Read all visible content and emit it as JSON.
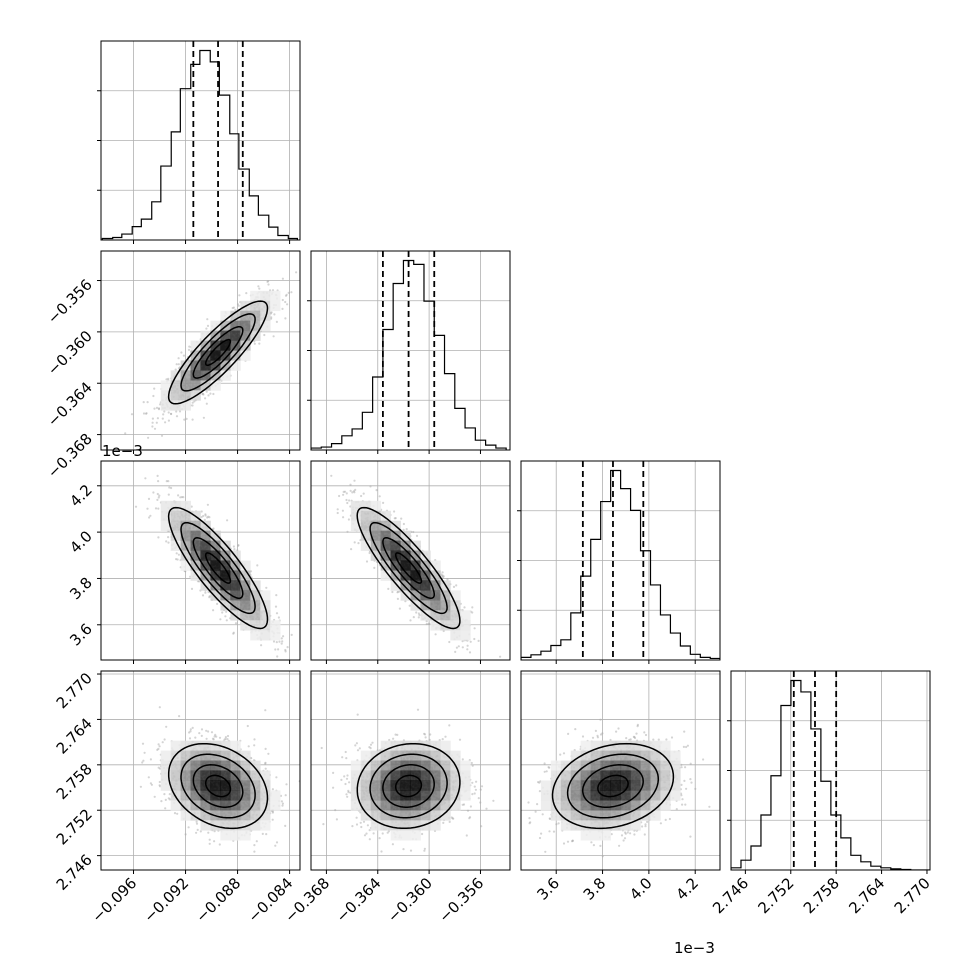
{
  "chart_data": {
    "type": "corner",
    "panel_types": {
      "diagonal": "histogram",
      "off_diagonal": "scatter with 2D density contours"
    },
    "grid": true,
    "histogram_style": "step",
    "quantile_lines": "dashed",
    "parameters": [
      {
        "ticks": [
          "−0.096",
          "−0.092",
          "−0.088",
          "−0.084"
        ],
        "tick_values": [
          -0.096,
          -0.092,
          -0.088,
          -0.084
        ],
        "range": [
          -0.0985,
          -0.0832
        ],
        "quantiles": [
          -0.0914,
          -0.0895,
          -0.0876
        ],
        "hist": {
          "edges": [
            -0.0984,
            -0.0976,
            -0.0969,
            -0.0961,
            -0.0954,
            -0.0946,
            -0.0939,
            -0.0931,
            -0.0924,
            -0.0916,
            -0.0909,
            -0.0901,
            -0.0894,
            -0.0886,
            -0.0879,
            -0.0871,
            -0.0864,
            -0.0856,
            -0.0849,
            -0.0841,
            -0.0834
          ],
          "counts": [
            3,
            5,
            12,
            27,
            42,
            77,
            149,
            218,
            305,
            354,
            382,
            359,
            292,
            214,
            143,
            89,
            50,
            26,
            9,
            3
          ]
        }
      },
      {
        "ticks": [
          "−0.368",
          "−0.364",
          "−0.360",
          "−0.356"
        ],
        "tick_values": [
          -0.368,
          -0.364,
          -0.36,
          -0.356
        ],
        "range": [
          -0.3692,
          -0.3537
        ],
        "quantiles": [
          -0.3636,
          -0.3616,
          -0.3596
        ],
        "hist": {
          "edges": [
            -0.3692,
            -0.3684,
            -0.3676,
            -0.3668,
            -0.366,
            -0.3652,
            -0.3644,
            -0.3636,
            -0.3628,
            -0.362,
            -0.3612,
            -0.3604,
            -0.3596,
            -0.3588,
            -0.358,
            -0.3572,
            -0.3564,
            -0.3556,
            -0.3548,
            -0.354
          ],
          "counts": [
            4,
            6,
            13,
            29,
            43,
            77,
            149,
            246,
            340,
            387,
            379,
            304,
            234,
            156,
            85,
            45,
            20,
            10,
            4
          ]
        }
      },
      {
        "ticks": [
          "3.6",
          "3.8",
          "4.0",
          "4.2"
        ],
        "tick_values": [
          0.0036,
          0.0038,
          0.004,
          0.0042
        ],
        "range": [
          0.003448,
          0.004307
        ],
        "offset_label": "1e−3",
        "quantiles": [
          0.003715,
          0.003845,
          0.003976
        ],
        "hist": {
          "edges": [
            0.003448,
            0.003491,
            0.003534,
            0.003577,
            0.00362,
            0.003663,
            0.003706,
            0.003749,
            0.003792,
            0.003835,
            0.003878,
            0.003921,
            0.003964,
            0.004007,
            0.00405,
            0.004093,
            0.004136,
            0.004179,
            0.004222,
            0.004265,
            0.004307
          ],
          "counts": [
            5,
            10,
            17,
            28,
            39,
            91,
            162,
            233,
            306,
            366,
            331,
            289,
            211,
            145,
            87,
            52,
            27,
            11,
            5,
            3
          ]
        }
      },
      {
        "ticks": [
          "2.746",
          "2.752",
          "2.758",
          "2.764",
          "2.770"
        ],
        "tick_values": [
          2.746,
          2.752,
          2.758,
          2.764,
          2.77
        ],
        "range": [
          2.7441,
          2.7704
        ],
        "quantiles": [
          2.7524,
          2.7552,
          2.758
        ],
        "hist": {
          "edges": [
            2.7441,
            2.74542,
            2.74674,
            2.74806,
            2.74938,
            2.7507,
            2.75202,
            2.75334,
            2.75466,
            2.75598,
            2.7573,
            2.75862,
            2.75994,
            2.76126,
            2.76258,
            2.7639,
            2.76522,
            2.76654,
            2.76786,
            2.76918,
            2.7704
          ],
          "counts": [
            4,
            18,
            44,
            101,
            173,
            302,
            348,
            327,
            259,
            163,
            101,
            59,
            27,
            15,
            7,
            4,
            2,
            1,
            0,
            0
          ]
        }
      }
    ],
    "scatter_correlation": {
      "1-0": 0.86,
      "2-0": -0.85,
      "2-1": -0.87,
      "3-0": -0.28,
      "3-1": 0.09,
      "3-2": 0.22
    }
  }
}
